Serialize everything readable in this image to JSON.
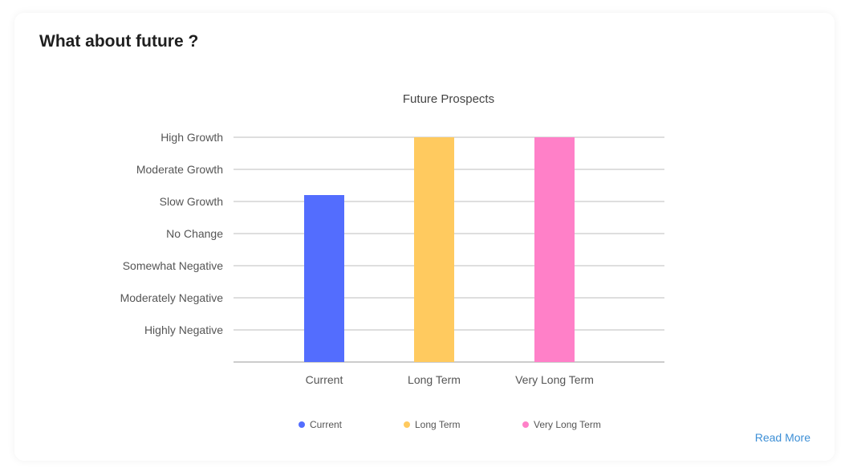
{
  "card": {
    "title": "What about future ?",
    "read_more": "Read More"
  },
  "chart_data": {
    "type": "bar",
    "title": "Future Prospects",
    "y_levels": [
      "Highly Negative",
      "Moderately Negative",
      "Somewhat Negative",
      "No Change",
      "Slow Growth",
      "Moderate Growth",
      "High Growth"
    ],
    "ylim": [
      0,
      7
    ],
    "categories": [
      "Current",
      "Long Term",
      "Very Long Term"
    ],
    "values": [
      5.2,
      7,
      7
    ],
    "colors": [
      "#536dfe",
      "#ffca5f",
      "#ff80c8"
    ],
    "legend": [
      "Current",
      "Long Term",
      "Very Long Term"
    ],
    "legend_position": "bottom",
    "grid": true
  }
}
